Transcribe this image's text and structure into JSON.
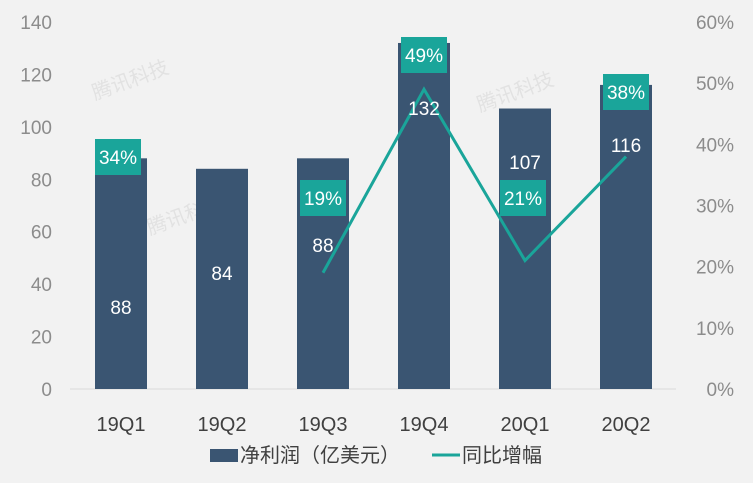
{
  "chart_data": {
    "type": "bar",
    "categories": [
      "19Q1",
      "19Q2",
      "19Q3",
      "19Q4",
      "20Q1",
      "20Q2"
    ],
    "series": [
      {
        "name": "净利润（亿美元）",
        "type": "bar",
        "axis": "left",
        "values": [
          88,
          84,
          88,
          132,
          107,
          116
        ],
        "labels": [
          "88",
          "84",
          "88",
          "132",
          "107",
          "116"
        ]
      },
      {
        "name": "同比增幅",
        "type": "line",
        "axis": "right",
        "values": [
          34,
          null,
          19,
          49,
          21,
          38
        ],
        "labels": [
          "34%",
          "",
          "19%",
          "49%",
          "21%",
          "38%"
        ]
      }
    ],
    "left_axis": {
      "ylim": [
        0,
        140
      ],
      "ticks": [
        "0",
        "20",
        "40",
        "60",
        "80",
        "100",
        "120",
        "140"
      ]
    },
    "right_axis": {
      "ylim": [
        0,
        60
      ],
      "ticks": [
        "0%",
        "10%",
        "20%",
        "30%",
        "40%",
        "50%",
        "60%"
      ]
    },
    "legend": {
      "position": "bottom",
      "entries": [
        "净利润（亿美元）",
        "同比增幅"
      ]
    },
    "watermark": "腾讯科技",
    "colors": {
      "bar": "#3a5572",
      "line": "#1aa59a",
      "label_box": "#1aa59a",
      "axis_text": "#8c8c8c",
      "background": "#f2f2f2"
    }
  }
}
